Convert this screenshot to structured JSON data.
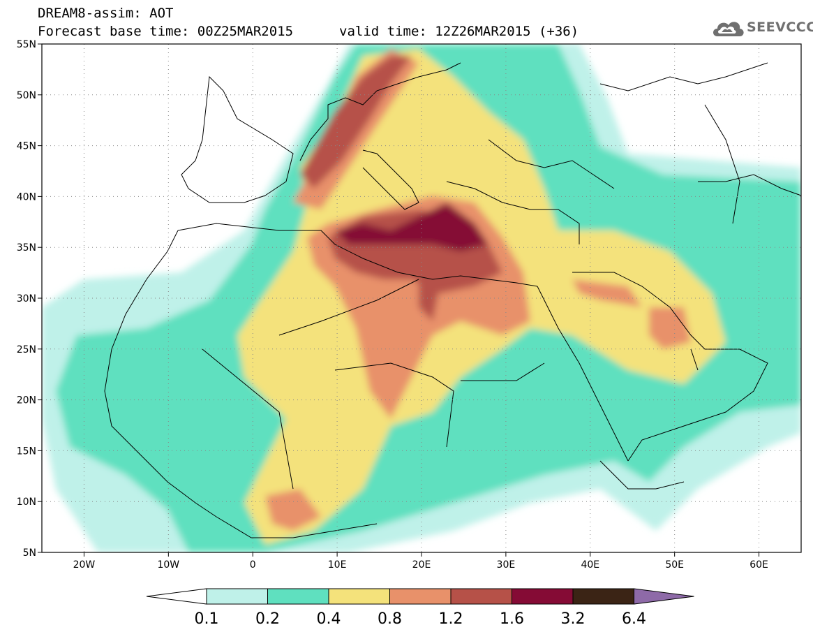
{
  "header": {
    "title": "DREAM8-assim: AOT",
    "base_time": "Forecast base time: 00Z25MAR2015",
    "valid_time": "valid time: 12Z26MAR2015 (+36)",
    "logo_text": "SEEVCCC"
  },
  "map": {
    "lon_range": [
      -25,
      65
    ],
    "lat_range": [
      5,
      55
    ],
    "lon_ticks": [
      {
        "value": -20,
        "label": "20W"
      },
      {
        "value": -10,
        "label": "10W"
      },
      {
        "value": 0,
        "label": "0"
      },
      {
        "value": 10,
        "label": "10E"
      },
      {
        "value": 20,
        "label": "20E"
      },
      {
        "value": 30,
        "label": "30E"
      },
      {
        "value": 40,
        "label": "40E"
      },
      {
        "value": 50,
        "label": "50E"
      },
      {
        "value": 60,
        "label": "60E"
      }
    ],
    "lat_ticks": [
      {
        "value": 55,
        "label": "55N"
      },
      {
        "value": 50,
        "label": "50N"
      },
      {
        "value": 45,
        "label": "45N"
      },
      {
        "value": 40,
        "label": "40N"
      },
      {
        "value": 35,
        "label": "35N"
      },
      {
        "value": 30,
        "label": "30N"
      },
      {
        "value": 25,
        "label": "25N"
      },
      {
        "value": 20,
        "label": "20N"
      },
      {
        "value": 15,
        "label": "15N"
      },
      {
        "value": 10,
        "label": "10N"
      },
      {
        "value": 5,
        "label": "5N"
      }
    ],
    "grid": true
  },
  "colorbar": {
    "levels": [
      "0.1",
      "0.2",
      "0.4",
      "0.8",
      "1.2",
      "1.6",
      "3.2",
      "6.4"
    ],
    "colors": [
      "#ffffff",
      "#bff1e9",
      "#5fe0bf",
      "#f4e27b",
      "#e8916a",
      "#b65148",
      "#850b35",
      "#3b2415",
      "#8e6aa8"
    ]
  }
}
